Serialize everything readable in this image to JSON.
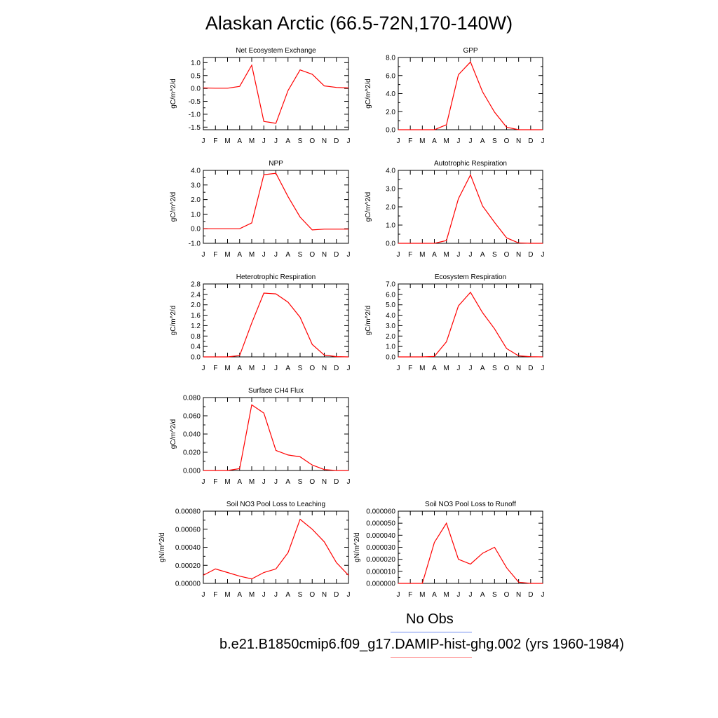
{
  "title": "Alaskan Arctic (66.5-72N,170-140W)",
  "months": [
    "J",
    "F",
    "M",
    "A",
    "M",
    "J",
    "J",
    "A",
    "S",
    "O",
    "N",
    "D",
    "J"
  ],
  "colors": {
    "model_line": "#ff0000",
    "obs_line": "#6f8cf0",
    "model_legend": "#ff9a9a"
  },
  "legend": {
    "obs_label": "No Obs",
    "model_label": "b.e21.B1850cmip6.f09_g17.DAMIP-hist-ghg.002 (yrs 1960-1984)"
  },
  "chart_data": [
    {
      "type": "line",
      "title": "Net Ecosystem Exchange",
      "ylabel": "gC/m^2/d",
      "ylim": [
        -1.6,
        1.2
      ],
      "yticks": [
        1.0,
        0.5,
        0.0,
        -0.5,
        -1.0,
        -1.5
      ],
      "yticklabels": [
        "1.0",
        "0.5",
        "0.0",
        "-0.5",
        "-1.0",
        "-1.5"
      ],
      "values": [
        0.02,
        0.01,
        0.01,
        0.08,
        0.9,
        -1.28,
        -1.35,
        -0.08,
        0.72,
        0.55,
        0.1,
        0.04,
        0.02
      ]
    },
    {
      "type": "line",
      "title": "GPP",
      "ylabel": "gC/m^2/d",
      "ylim": [
        0.0,
        8.0
      ],
      "yticks": [
        0.0,
        2.0,
        4.0,
        6.0,
        8.0
      ],
      "yticklabels": [
        "0.0",
        "2.0",
        "4.0",
        "6.0",
        "8.0"
      ],
      "values": [
        0.0,
        0.0,
        0.0,
        0.0,
        0.55,
        6.1,
        7.5,
        4.2,
        1.95,
        0.28,
        0.0,
        0.0,
        0.0
      ]
    },
    {
      "type": "line",
      "title": "NPP",
      "ylabel": "gC/m^2/d",
      "ylim": [
        -1.0,
        4.0
      ],
      "yticks": [
        -1.0,
        0.0,
        1.0,
        2.0,
        3.0,
        4.0
      ],
      "yticklabels": [
        "-1.0",
        "0.0",
        "1.0",
        "2.0",
        "3.0",
        "4.0"
      ],
      "values": [
        0.0,
        0.0,
        0.0,
        0.0,
        0.4,
        3.7,
        3.8,
        2.2,
        0.8,
        -0.08,
        -0.03,
        -0.03,
        -0.03
      ]
    },
    {
      "type": "line",
      "title": "Autotrophic Respiration",
      "ylabel": "gC/m^2/d",
      "ylim": [
        0.0,
        4.0
      ],
      "yticks": [
        0.0,
        1.0,
        2.0,
        3.0,
        4.0
      ],
      "yticklabels": [
        "0.0",
        "1.0",
        "2.0",
        "3.0",
        "4.0"
      ],
      "values": [
        0.0,
        0.0,
        0.0,
        0.0,
        0.15,
        2.45,
        3.75,
        2.05,
        1.15,
        0.3,
        0.02,
        0.0,
        0.0
      ]
    },
    {
      "type": "line",
      "title": "Heterotrophic Respiration",
      "ylabel": "gC/m^2/d",
      "ylim": [
        0.0,
        2.8
      ],
      "yticks": [
        0.0,
        0.4,
        0.8,
        1.2,
        1.6,
        2.0,
        2.4,
        2.8
      ],
      "yticklabels": [
        "0.0",
        "0.4",
        "0.8",
        "1.2",
        "1.6",
        "2.0",
        "2.4",
        "2.8"
      ],
      "values": [
        0.0,
        0.0,
        0.0,
        0.05,
        1.3,
        2.45,
        2.42,
        2.1,
        1.52,
        0.48,
        0.07,
        0.01,
        0.0
      ]
    },
    {
      "type": "line",
      "title": "Ecosystem Respiration",
      "ylabel": "gC/m^2/d",
      "ylim": [
        0.0,
        7.0
      ],
      "yticks": [
        0.0,
        1.0,
        2.0,
        3.0,
        4.0,
        5.0,
        6.0,
        7.0
      ],
      "yticklabels": [
        "0.0",
        "1.0",
        "2.0",
        "3.0",
        "4.0",
        "5.0",
        "6.0",
        "7.0"
      ],
      "values": [
        0.0,
        0.0,
        0.0,
        0.05,
        1.45,
        4.9,
        6.2,
        4.25,
        2.7,
        0.8,
        0.1,
        0.02,
        0.0
      ]
    },
    {
      "type": "line",
      "title": "Surface CH4 Flux",
      "ylabel": "gC/m^2/d",
      "ylim": [
        0.0,
        0.08
      ],
      "yticks": [
        0.0,
        0.02,
        0.04,
        0.06,
        0.08
      ],
      "yticklabels": [
        "0.000",
        "0.020",
        "0.040",
        "0.060",
        "0.080"
      ],
      "values": [
        0.0,
        0.0,
        0.0,
        0.002,
        0.072,
        0.063,
        0.022,
        0.017,
        0.015,
        0.006,
        0.001,
        0.0,
        0.0
      ]
    },
    {
      "type": "line",
      "title": "Soil NO3 Pool Loss to Leaching",
      "ylabel": "gN/m^2/d",
      "ylim": [
        0.0,
        0.0008
      ],
      "yticks": [
        0.0,
        0.0002,
        0.0004,
        0.0006,
        0.0008
      ],
      "yticklabels": [
        "0.00000",
        "0.00020",
        "0.00040",
        "0.00060",
        "0.00080"
      ],
      "values": [
        9e-05,
        0.00016,
        0.00012,
        8e-05,
        5e-05,
        0.00012,
        0.00016,
        0.00034,
        0.00071,
        0.0006,
        0.00046,
        0.00023,
        9e-05
      ]
    },
    {
      "type": "line",
      "title": "Soil NO3 Pool Loss to Runoff",
      "ylabel": "gN/m^2/d",
      "ylim": [
        0.0,
        6e-05
      ],
      "yticks": [
        0.0,
        1e-05,
        2e-05,
        3e-05,
        4e-05,
        5e-05,
        6e-05
      ],
      "yticklabels": [
        "0.000000",
        "0.000010",
        "0.000020",
        "0.000030",
        "0.000040",
        "0.000050",
        "0.000060"
      ],
      "values": [
        0.0,
        0.0,
        0.0,
        3.4e-05,
        5e-05,
        2e-05,
        1.6e-05,
        2.5e-05,
        3e-05,
        1.3e-05,
        1e-06,
        0.0,
        0.0
      ]
    }
  ]
}
